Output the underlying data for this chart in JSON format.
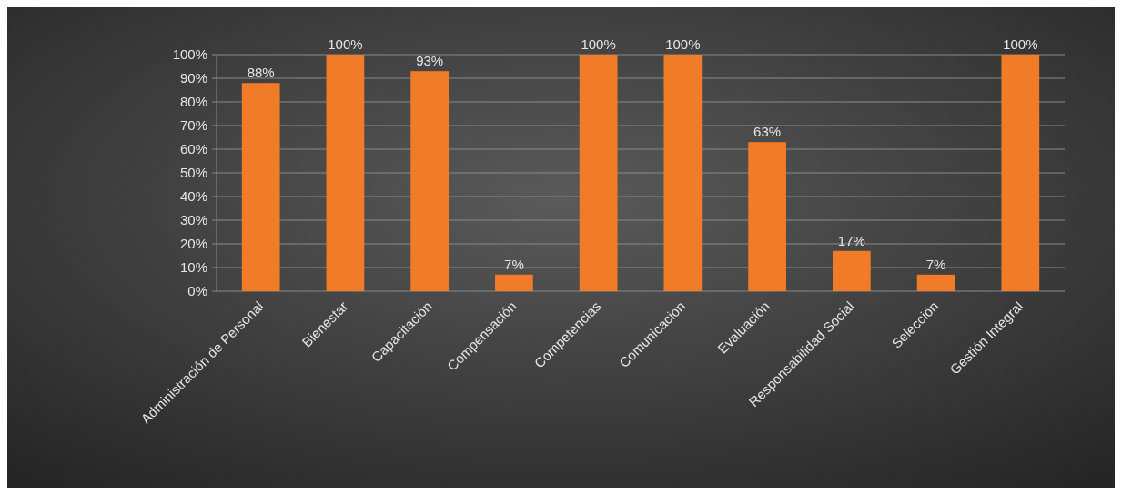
{
  "chart_data": {
    "type": "bar",
    "categories": [
      "Administración de Personal",
      "Bienestar",
      "Capacitación",
      "Compensación",
      "Competencias",
      "Comunicación",
      "Evaluación",
      "Responsabilidad Social",
      "Selección",
      "Gestión Integral"
    ],
    "values": [
      88,
      100,
      93,
      7,
      100,
      100,
      63,
      17,
      7,
      100
    ],
    "value_labels": [
      "88%",
      "100%",
      "93%",
      "7%",
      "100%",
      "100%",
      "63%",
      "17%",
      "7%",
      "100%"
    ],
    "color": "#f07c28",
    "ylim": [
      0,
      100
    ],
    "yticks": [
      {
        "value": 0,
        "label": "0%"
      },
      {
        "value": 10,
        "label": "10%"
      },
      {
        "value": 20,
        "label": "20%"
      },
      {
        "value": 30,
        "label": "30%"
      },
      {
        "value": 40,
        "label": "40%"
      },
      {
        "value": 50,
        "label": "50%"
      },
      {
        "value": 60,
        "label": "60%"
      },
      {
        "value": 70,
        "label": "70%"
      },
      {
        "value": 80,
        "label": "80%"
      },
      {
        "value": 90,
        "label": "90%"
      },
      {
        "value": 100,
        "label": "100%"
      }
    ],
    "grid": "y"
  }
}
